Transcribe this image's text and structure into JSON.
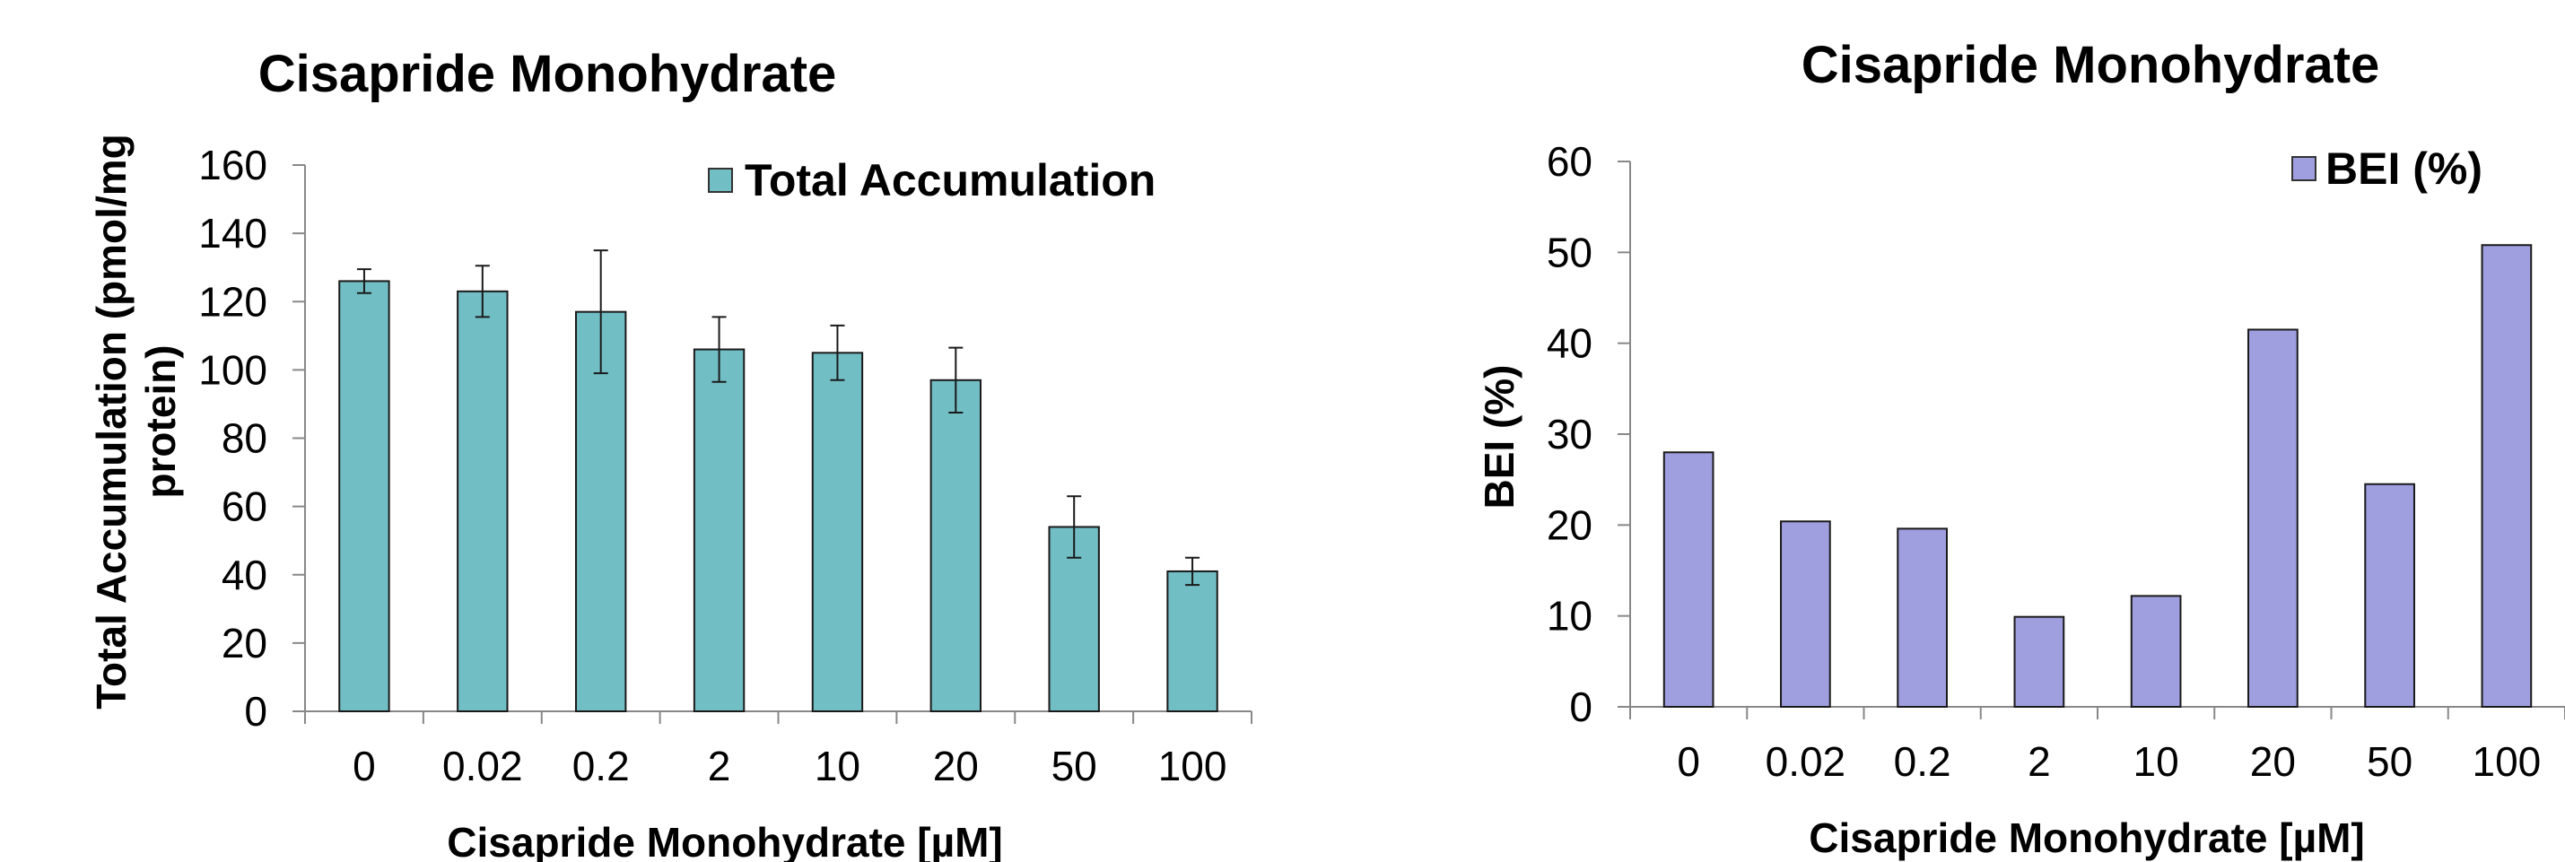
{
  "chart_data": [
    {
      "type": "bar",
      "title": "Cisapride Monohydrate",
      "xlabel": "Cisapride Monohydrate [µM]",
      "ylabel_lines": [
        "Total Accumulation (pmol/mg",
        "protein)"
      ],
      "categories": [
        "0",
        "0.02",
        "0.2",
        "2",
        "10",
        "20",
        "50",
        "100"
      ],
      "series": [
        {
          "name": "Total Accumulation",
          "values": [
            126,
            123,
            117,
            106,
            105,
            97,
            54,
            41
          ],
          "error": [
            3.5,
            7.5,
            18,
            9.5,
            8,
            9.5,
            9,
            4
          ]
        }
      ],
      "ylim": [
        0,
        160
      ],
      "yticks": [
        0,
        20,
        40,
        60,
        80,
        100,
        120,
        140,
        160
      ],
      "color": "#72BEC5",
      "grid": false,
      "legend": "top-right"
    },
    {
      "type": "bar",
      "title": "Cisapride Monohydrate",
      "xlabel": "Cisapride Monohydrate [µM]",
      "ylabel_lines": [
        "BEI (%)"
      ],
      "categories": [
        "0",
        "0.02",
        "0.2",
        "2",
        "10",
        "20",
        "50",
        "100"
      ],
      "series": [
        {
          "name": "BEI (%)",
          "values": [
            28,
            20.4,
            19.6,
            9.9,
            12.2,
            41.5,
            24.5,
            50.8
          ]
        }
      ],
      "ylim": [
        0,
        60
      ],
      "yticks": [
        0,
        10,
        20,
        30,
        40,
        50,
        60
      ],
      "color": "#9F9EDF",
      "grid": false,
      "legend": "top-right"
    }
  ]
}
